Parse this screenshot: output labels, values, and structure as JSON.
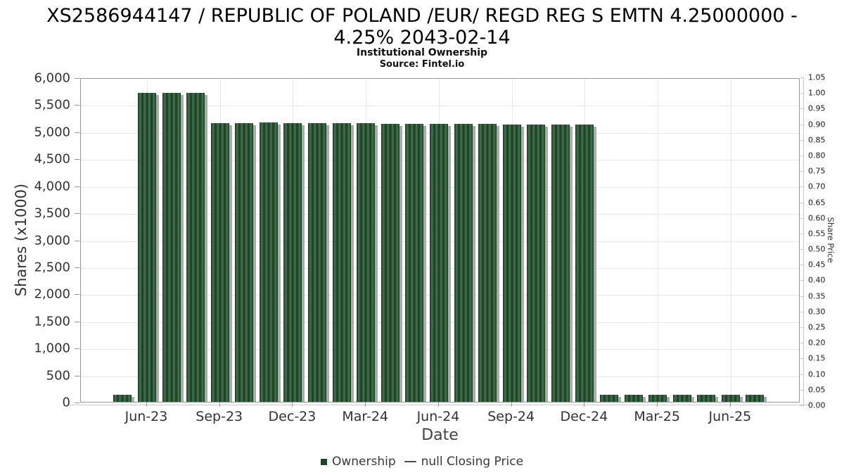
{
  "title": {
    "line1": "XS2586944147 / REPUBLIC OF POLAND /EUR/ REGD REG S EMTN 4.25000000 -",
    "line2": "4.25% 2043-02-14",
    "subtitle": "Institutional Ownership",
    "source": "Source: Fintel.io"
  },
  "axes": {
    "left_title": "Shares (x1000)",
    "right_title": "Share Price",
    "x_title": "Date",
    "left_tick_values": [
      0,
      500,
      1000,
      1500,
      2000,
      2500,
      3000,
      3500,
      4000,
      4500,
      5000,
      5500,
      6000
    ],
    "left_tick_labels": [
      "0",
      "500",
      "1,000",
      "1,500",
      "2,000",
      "2,500",
      "3,000",
      "3,500",
      "4,000",
      "4,500",
      "5,000",
      "5,500",
      "6,000"
    ],
    "right_tick_labels": [
      "0.00",
      "0.05",
      "0.10",
      "0.15",
      "0.20",
      "0.25",
      "0.30",
      "0.35",
      "0.40",
      "0.45",
      "0.50",
      "0.55",
      "0.60",
      "0.65",
      "0.70",
      "0.75",
      "0.80",
      "0.85",
      "0.90",
      "0.95",
      "1.00",
      "1.05"
    ],
    "x_tick_labels": [
      "Jun-23",
      "Sep-23",
      "Dec-23",
      "Mar-24",
      "Jun-24",
      "Sep-24",
      "Dec-24",
      "Mar-25",
      "Jun-25"
    ]
  },
  "legend": {
    "ownership_label": "Ownership",
    "price_series_label": "null Closing Price"
  },
  "colors": {
    "bar_dark": "#16381f",
    "bar_mid": "#2b5737",
    "bar_light": "#477350",
    "bar_shadow": "#ababab",
    "legend_square": "#1d4528",
    "grid": "#e6e6e6",
    "frame": "#979797",
    "axis_line": "#c9c9c9",
    "tick_mark": "#999999",
    "text": "#333333"
  },
  "chart_data": {
    "type": "bar",
    "title": "XS2586944147 / REPUBLIC OF POLAND /EUR/ REGD REG S EMTN 4.25000000 - 4.25% 2043-02-14",
    "subtitle": "Institutional Ownership",
    "source": "Source: Fintel.io",
    "xlabel": "Date",
    "ylabel": "Shares (x1000)",
    "ylabel_right": "Share Price",
    "categories": [
      "May-23",
      "Jun-23",
      "Jul-23",
      "Aug-23",
      "Sep-23",
      "Oct-23",
      "Nov-23",
      "Dec-23",
      "Jan-24",
      "Feb-24",
      "Mar-24",
      "Apr-24",
      "May-24",
      "Jun-24",
      "Jul-24",
      "Aug-24",
      "Sep-24",
      "Oct-24",
      "Nov-24",
      "Dec-24",
      "Jan-25",
      "Feb-25",
      "Mar-25",
      "Apr-25",
      "May-25",
      "Jun-25",
      "Jul-25"
    ],
    "series": [
      {
        "name": "Ownership",
        "marker": "square",
        "values": [
          130,
          5715,
          5715,
          5715,
          5160,
          5160,
          5165,
          5150,
          5150,
          5150,
          5150,
          5145,
          5145,
          5145,
          5145,
          5140,
          5130,
          5130,
          5130,
          5125,
          130,
          130,
          130,
          130,
          130,
          130,
          130
        ]
      },
      {
        "name": "null Closing Price",
        "marker": "dash",
        "values": []
      }
    ],
    "x_tick_indices": [
      1,
      4,
      7,
      10,
      13,
      16,
      19,
      22,
      25
    ],
    "x_tick_labels": [
      "Jun-23",
      "Sep-23",
      "Dec-23",
      "Mar-24",
      "Jun-24",
      "Sep-24",
      "Dec-24",
      "Mar-25",
      "Jun-25"
    ],
    "ylim_left": [
      0,
      6000
    ],
    "ylim_right": [
      0,
      1.05
    ],
    "y_left_tick_step": 500,
    "y_right_tick_step": 0.05,
    "grid": true,
    "legend_position": "bottom"
  }
}
